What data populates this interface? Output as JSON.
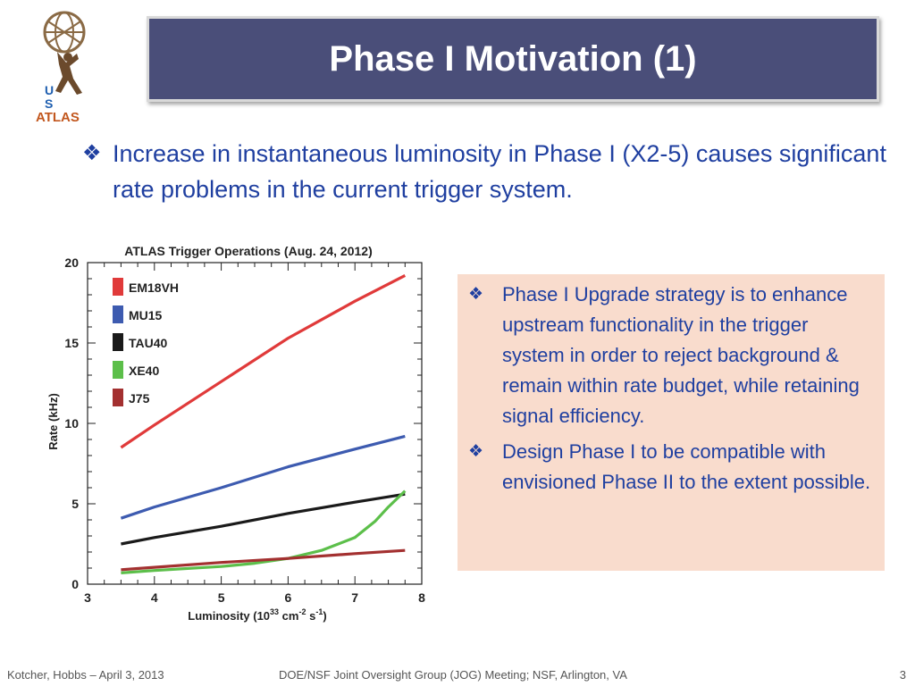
{
  "slide": {
    "title": "Phase I Motivation (1)",
    "main_bullet": "Increase in instantaneous luminosity in Phase I (X2-5) causes significant rate problems in the current trigger system.",
    "callout_bullets": [
      "Phase I Upgrade strategy is to enhance upstream functionality in the trigger system in order to reject background & remain within rate budget, while retaining signal efficiency.",
      "Design Phase I to be compatible with envisioned Phase II to the extent possible."
    ],
    "bullet_symbol": "❖"
  },
  "logo": {
    "lines": [
      "U",
      "S",
      "ATLAS"
    ],
    "icon": "atlas-figure-globe-icon",
    "colors": {
      "u_s": "#1f5fb0",
      "atlas": "#c2571e"
    }
  },
  "footer": {
    "left": "Kotcher, Hobbs – April 3, 2013",
    "center": "DOE/NSF Joint Oversight Group (JOG) Meeting; NSF, Arlington, VA",
    "page": "3"
  },
  "colors": {
    "title_bg": "#4a4e79",
    "text_blue": "#1f3fa0",
    "callout_bg": "#f9dccd"
  },
  "chart_data": {
    "type": "line",
    "title": "ATLAS Trigger Operations (Aug. 24, 2012)",
    "xlabel": "Luminosity (10",
    "xlabel_sup1": "33",
    "xlabel_mid": " cm",
    "xlabel_sup2": "-2",
    "xlabel_end": " s",
    "xlabel_sup3": "-1",
    "xlabel_close": ")",
    "ylabel": "Rate (kHz)",
    "xlim": [
      3,
      8
    ],
    "ylim": [
      0,
      20
    ],
    "xticks": [
      3,
      4,
      5,
      6,
      7,
      8
    ],
    "yticks": [
      0,
      5,
      10,
      15,
      20
    ],
    "legend_position": "top-left",
    "series": [
      {
        "name": "EM18VH",
        "color": "#e03a3a",
        "x": [
          3.5,
          4,
          5,
          6,
          7,
          7.75
        ],
        "y": [
          8.5,
          9.9,
          12.6,
          15.3,
          17.6,
          19.2
        ]
      },
      {
        "name": "MU15",
        "color": "#3d5bb0",
        "x": [
          3.5,
          4,
          5,
          6,
          7,
          7.75
        ],
        "y": [
          4.1,
          4.8,
          6.0,
          7.3,
          8.4,
          9.2
        ]
      },
      {
        "name": "TAU40",
        "color": "#1a1a1a",
        "x": [
          3.5,
          4,
          5,
          6,
          7,
          7.75
        ],
        "y": [
          2.5,
          2.9,
          3.6,
          4.4,
          5.1,
          5.6
        ]
      },
      {
        "name": "XE40",
        "color": "#5cbf4a",
        "x": [
          3.5,
          4,
          5,
          5.5,
          6,
          6.5,
          7,
          7.3,
          7.5,
          7.75
        ],
        "y": [
          0.7,
          0.85,
          1.1,
          1.3,
          1.6,
          2.1,
          2.9,
          3.9,
          4.8,
          5.8
        ]
      },
      {
        "name": "J75",
        "color": "#a33030",
        "x": [
          3.5,
          4,
          5,
          6,
          7,
          7.75
        ],
        "y": [
          0.9,
          1.05,
          1.35,
          1.6,
          1.9,
          2.1
        ]
      }
    ]
  }
}
